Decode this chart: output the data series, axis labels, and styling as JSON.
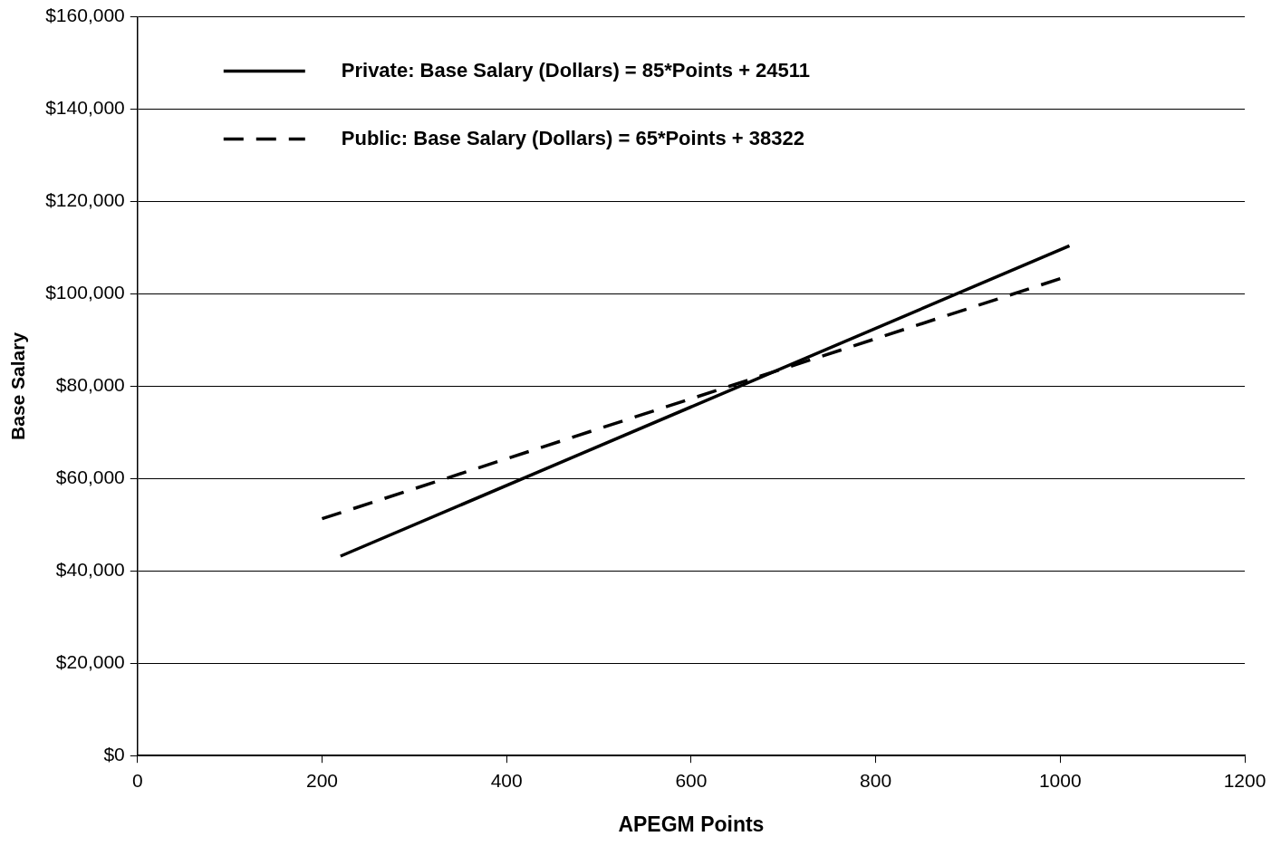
{
  "chart_data": {
    "type": "line",
    "xlabel": "APEGM Points",
    "ylabel": "Base Salary",
    "xlim": [
      0,
      1200
    ],
    "xticks": [
      0,
      200,
      400,
      600,
      800,
      1000,
      1200
    ],
    "ylim": [
      0,
      160000
    ],
    "yticks": [
      {
        "value": 0,
        "label": "$0"
      },
      {
        "value": 20000,
        "label": "$20,000"
      },
      {
        "value": 40000,
        "label": "$40,000"
      },
      {
        "value": 60000,
        "label": "$60,000"
      },
      {
        "value": 80000,
        "label": "$80,000"
      },
      {
        "value": 100000,
        "label": "$100,000"
      },
      {
        "value": 120000,
        "label": "$120,000"
      },
      {
        "value": 140000,
        "label": "$140,000"
      },
      {
        "value": 160000,
        "label": "$160,000"
      }
    ],
    "grid": "y",
    "legend": "top",
    "marker": "none",
    "series": [
      {
        "name": "Private: Base Salary (Dollars) = 85*Points + 24511",
        "color": "#000000",
        "line_style": "solid",
        "x": [
          220,
          1010
        ],
        "values": [
          43200,
          110400
        ]
      },
      {
        "name": "Public: Base Salary (Dollars) = 65*Points + 38322",
        "color": "#000000",
        "line_style": "dashed",
        "x": [
          200,
          1000
        ],
        "values": [
          51300,
          103300
        ]
      }
    ]
  }
}
